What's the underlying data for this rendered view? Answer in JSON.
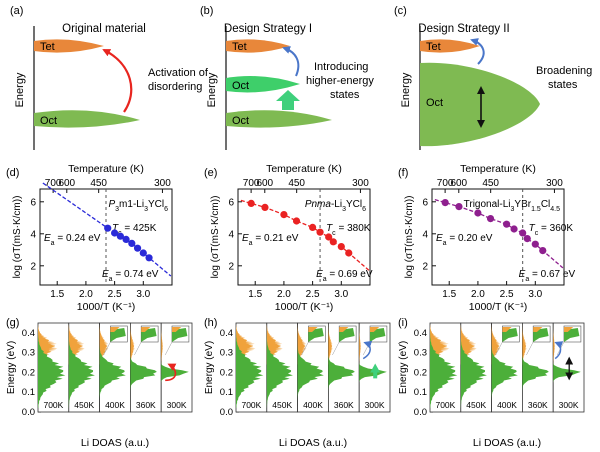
{
  "colors": {
    "tet": "#e8873a",
    "oct": "#7fba52",
    "oct_bright": "#3ecf6a",
    "arrow_red": "#e8251f",
    "arrow_blue": "#4a76c9",
    "arrow_green": "#3fd07c",
    "dos_green": "#4caf3a",
    "dos_orange": "#f0a23c",
    "series_d": "#2a2ad8",
    "series_e": "#ea2222",
    "series_f": "#8e1f8e"
  },
  "top_panels": [
    {
      "label": "(a)",
      "title": "Original material",
      "axis": "Energy",
      "tet": "Tet",
      "oct": "Oct",
      "annotation": [
        "Activation of",
        "disordering"
      ]
    },
    {
      "label": "(b)",
      "title": "Design Strategy I",
      "axis": "Energy",
      "tet": "Tet",
      "oct_upper": "Oct",
      "oct": "Oct",
      "annotation": [
        "Introducing",
        "higher-energy",
        "states"
      ]
    },
    {
      "label": "(c)",
      "title": "Design Strategy II",
      "axis": "Energy",
      "tet": "Tet",
      "oct": "Oct",
      "annotation": [
        "Broadening",
        "states"
      ]
    }
  ],
  "chart_data": [
    {
      "type": "scatter",
      "label": "(d)",
      "title_parts": [
        "P",
        "3",
        "m1-Li",
        "3",
        "YCl",
        "6"
      ],
      "top_axis_title": "Temperature (K)",
      "top_ticks": [
        "700",
        "600",
        "450",
        "300"
      ],
      "xlabel": "1000/T (K⁻¹)",
      "ylabel": "log (σT(mS·K/cm))",
      "xlim": [
        1.2,
        3.5
      ],
      "ylim": [
        0.8,
        6.8
      ],
      "x_ticks": [
        1.5,
        2.0,
        2.5,
        3.0
      ],
      "y_ticks": [
        2,
        4,
        6
      ],
      "tc_text": [
        "T",
        "c",
        " = 425K"
      ],
      "tc_x": 2.35,
      "ea_high": [
        "E",
        "a",
        " = 0.24 eV"
      ],
      "ea_low": [
        "E",
        "a",
        " = 0.74 eV"
      ],
      "x": [
        2.38,
        2.5,
        2.6,
        2.7,
        2.8,
        2.9,
        3.0,
        3.1
      ],
      "y": [
        4.35,
        4.05,
        3.85,
        3.65,
        3.4,
        3.1,
        2.8,
        2.5
      ]
    },
    {
      "type": "scatter",
      "label": "(e)",
      "title_parts": [
        "Pnma",
        "-Li",
        "3",
        "YCl",
        "6"
      ],
      "top_axis_title": "Temperature (K)",
      "top_ticks": [
        "700",
        "600",
        "450",
        "300"
      ],
      "xlabel": "1000/T (K⁻¹)",
      "ylabel": "log (σT(mS·K/cm))",
      "xlim": [
        1.2,
        3.5
      ],
      "ylim": [
        0.8,
        6.8
      ],
      "x_ticks": [
        1.5,
        2.0,
        2.5,
        3.0
      ],
      "y_ticks": [
        2,
        4,
        6
      ],
      "tc_text": [
        "T",
        "c",
        " = 380K"
      ],
      "tc_x": 2.63,
      "ea_high": [
        "E",
        "a",
        " = 0.21 eV"
      ],
      "ea_low": [
        "E",
        "a",
        " = 0.69 eV"
      ],
      "x": [
        1.43,
        1.67,
        2.0,
        2.22,
        2.5,
        2.63,
        2.78,
        2.86,
        3.0,
        3.13
      ],
      "y": [
        5.9,
        5.65,
        5.2,
        4.8,
        4.4,
        4.1,
        3.8,
        3.5,
        3.2,
        2.8
      ]
    },
    {
      "type": "scatter",
      "label": "(f)",
      "title_parts": [
        "Trigonal-Li",
        "3",
        "YBr",
        "1.5",
        "Cl",
        "4.5"
      ],
      "top_axis_title": "Temperature (K)",
      "top_ticks": [
        "700",
        "600",
        "450",
        "300"
      ],
      "xlabel": "1000/T (K⁻¹)",
      "ylabel": "log (σT(mS·K/cm))",
      "xlim": [
        1.2,
        3.5
      ],
      "ylim": [
        0.8,
        6.8
      ],
      "x_ticks": [
        1.5,
        2.0,
        2.5,
        3.0
      ],
      "y_ticks": [
        2,
        4,
        6
      ],
      "tc_text": [
        "T",
        "c",
        " = 360K"
      ],
      "tc_x": 2.78,
      "ea_high": [
        "E",
        "a",
        " = 0.20 eV"
      ],
      "ea_low": [
        "E",
        "a",
        " = 0.67 eV"
      ],
      "x": [
        1.43,
        1.67,
        2.0,
        2.22,
        2.5,
        2.63,
        2.78,
        2.86,
        3.0,
        3.13
      ],
      "y": [
        5.95,
        5.7,
        5.3,
        4.95,
        4.6,
        4.3,
        4.05,
        3.7,
        3.35,
        2.95
      ]
    }
  ],
  "dos_panels": [
    {
      "label": "(g)",
      "ylabel": "Energy (eV)",
      "xlabel": "Li DOAS (a.u.)",
      "y_ticks": [
        "0.0",
        "0.1",
        "0.2",
        "0.3",
        "0.4"
      ],
      "temps": [
        "700K",
        "450K",
        "400K",
        "360K",
        "300K"
      ],
      "arrow": "red"
    },
    {
      "label": "(h)",
      "ylabel": "Energy (eV)",
      "xlabel": "Li DOAS (a.u.)",
      "y_ticks": [
        "0.0",
        "0.1",
        "0.2",
        "0.3",
        "0.4"
      ],
      "temps": [
        "700K",
        "450K",
        "400K",
        "360K",
        "300K"
      ],
      "arrow": "blue-green"
    },
    {
      "label": "(i)",
      "ylabel": "Energy (eV)",
      "xlabel": "Li DOAS (a.u.)",
      "y_ticks": [
        "0.0",
        "0.1",
        "0.2",
        "0.3",
        "0.4"
      ],
      "temps": [
        "700K",
        "450K",
        "400K",
        "360K",
        "300K"
      ],
      "arrow": "blue-black"
    }
  ]
}
